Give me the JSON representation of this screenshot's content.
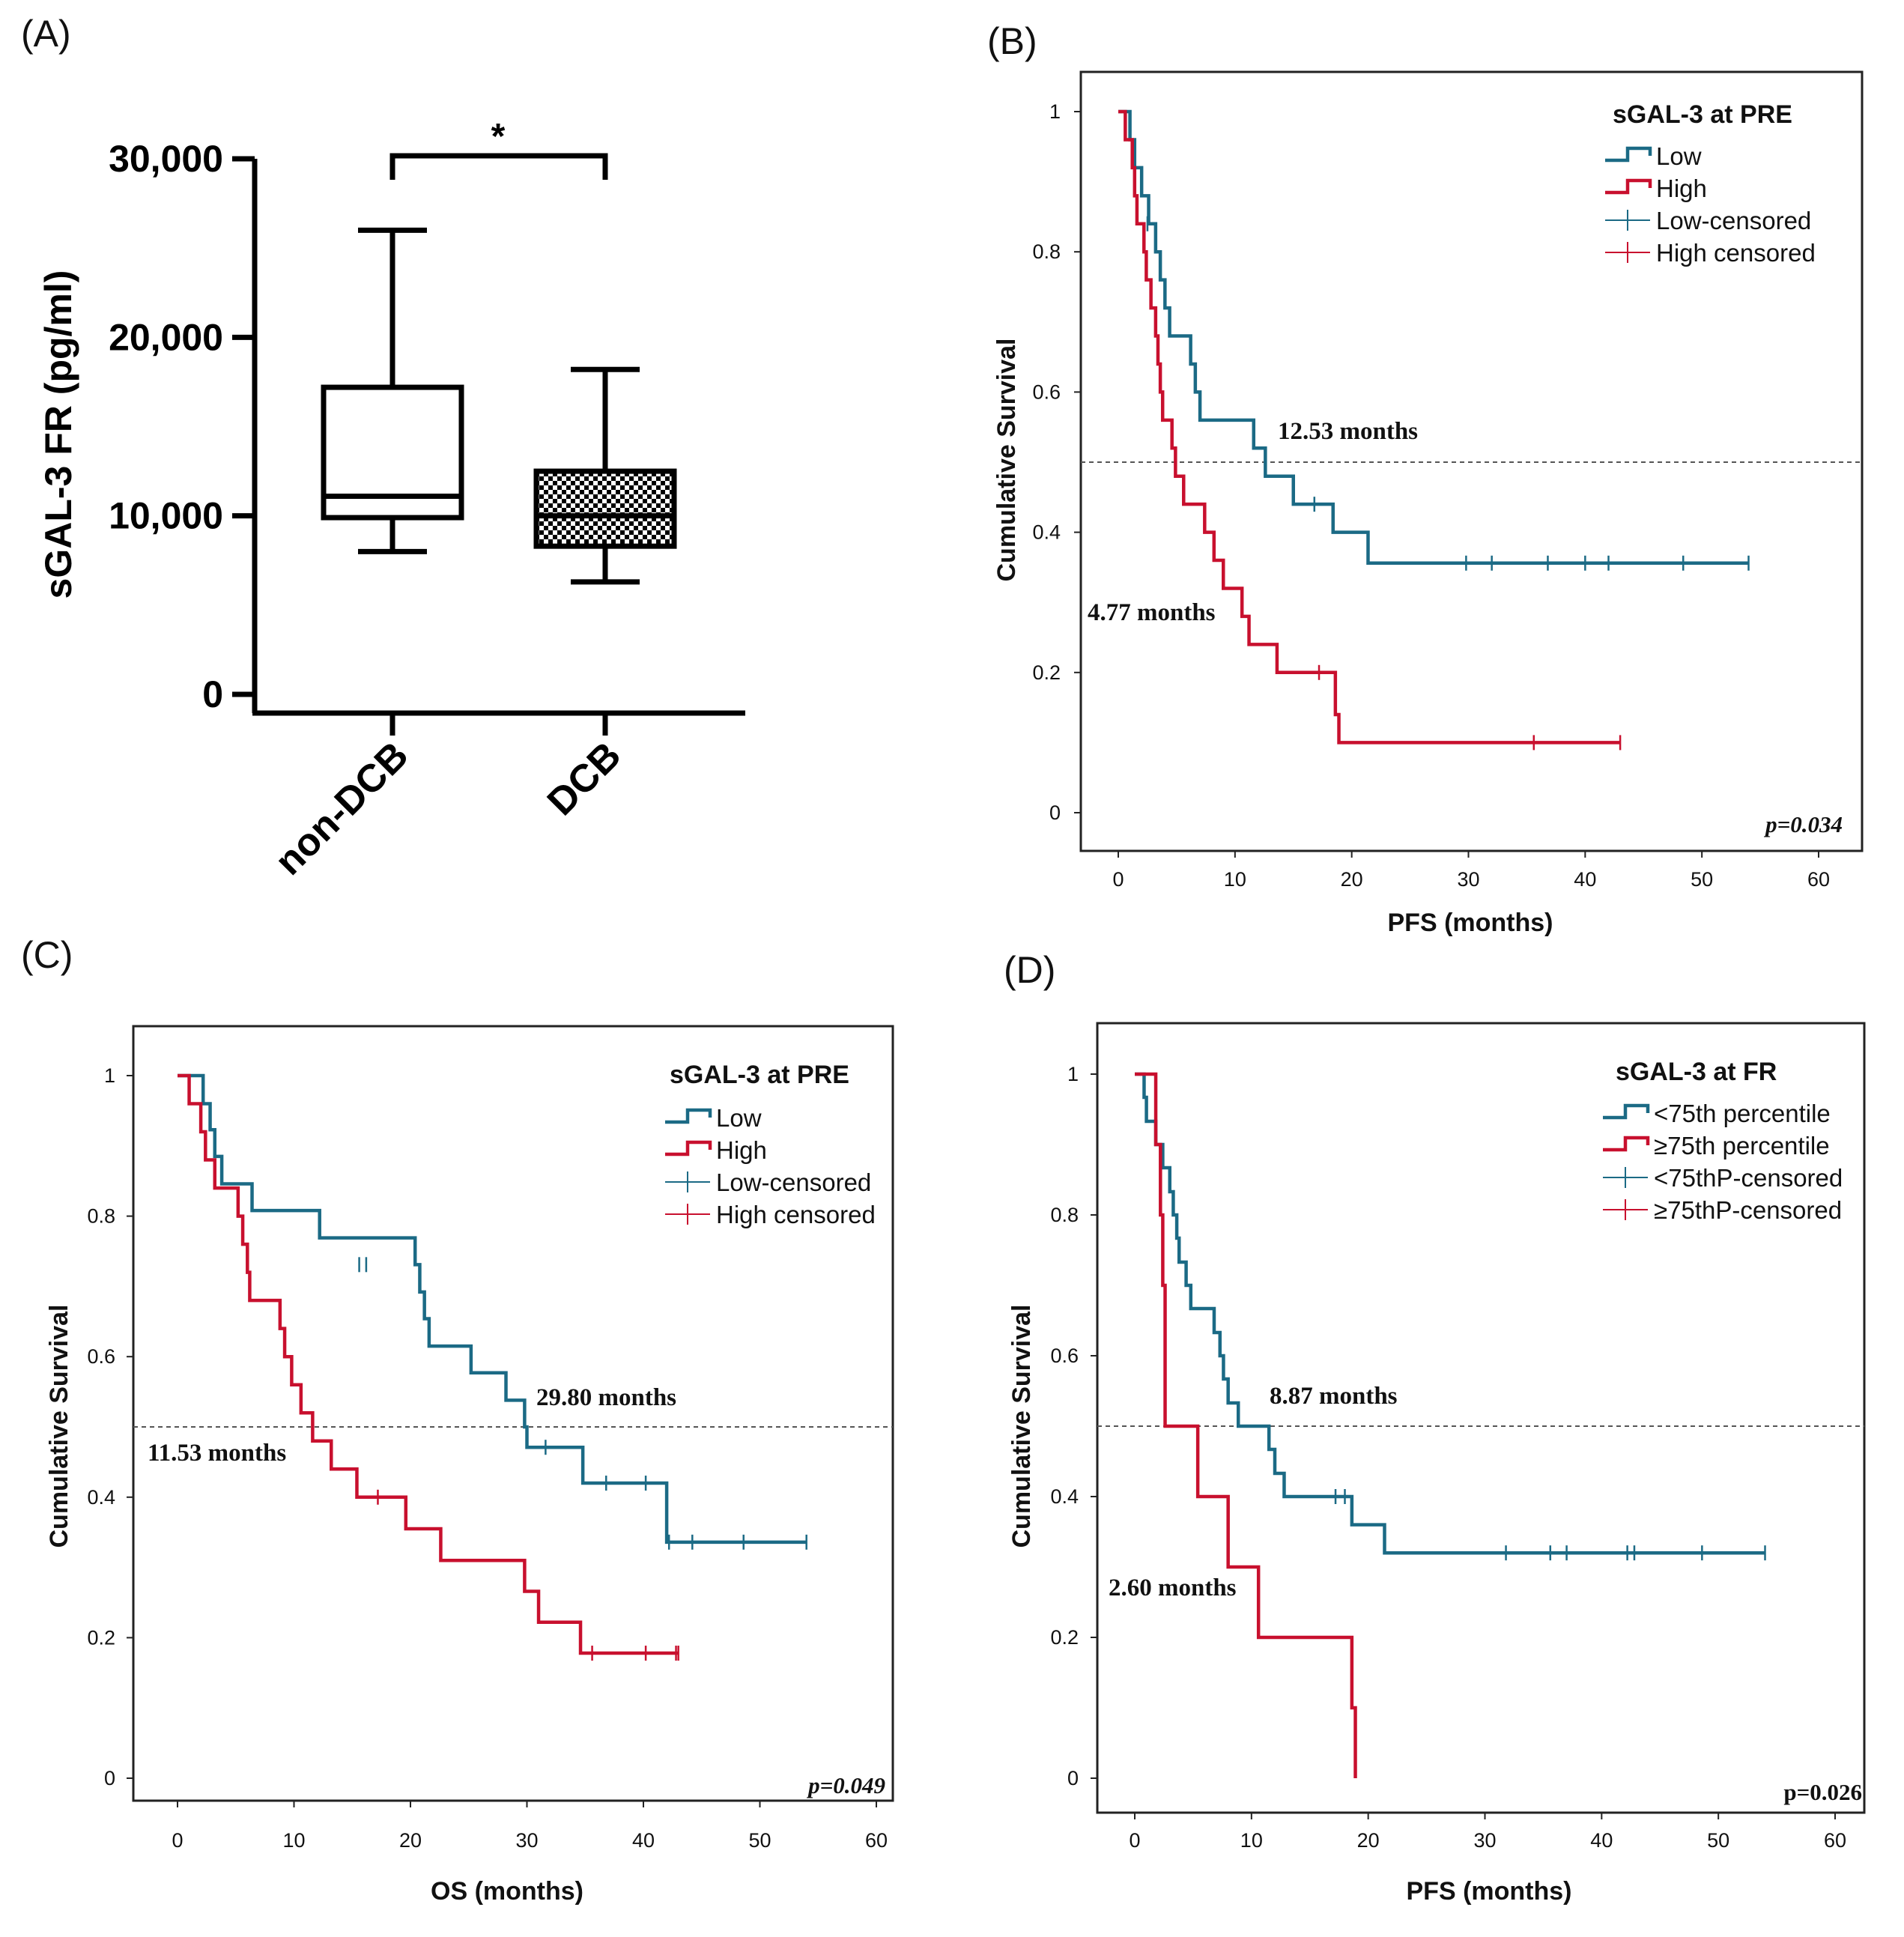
{
  "colors": {
    "low": "#1b6a85",
    "high": "#c8102e",
    "axis": "#000000",
    "ref": "#555555"
  },
  "chart_data": [
    {
      "panel": "(A)",
      "type": "box",
      "ylabel": "sGAL-3 FR (pg/ml)",
      "ylim": [
        0,
        30000
      ],
      "yticks": [
        "0",
        "10,000",
        "20,000",
        "30,000"
      ],
      "categories": [
        "non-DCB",
        "DCB"
      ],
      "boxes": [
        {
          "category": "non-DCB",
          "min": 8000,
          "q1": 9900,
          "median": 11100,
          "q3": 17200,
          "max": 26000,
          "fill": "none"
        },
        {
          "category": "DCB",
          "min": 6300,
          "q1": 8300,
          "median": 10000,
          "q3": 12500,
          "max": 18200,
          "fill": "checker"
        }
      ],
      "significance": "*"
    },
    {
      "panel": "(B)",
      "type": "line",
      "xlabel": "PFS (months)",
      "ylabel": "Cumulative Survival",
      "xlim": [
        0,
        60
      ],
      "ylim": [
        0,
        1
      ],
      "xticks": [
        "0",
        "10",
        "20",
        "30",
        "40",
        "50",
        "60"
      ],
      "yticks": [
        "0",
        "0.2",
        "0.4",
        "0.6",
        "0.8",
        "1"
      ],
      "legend_title": "sGAL-3 at PRE",
      "legend": [
        "Low",
        "High",
        "Low-censored",
        "High censored"
      ],
      "annotations": [
        "12.53 months",
        "4.77 months"
      ],
      "p_value": "p=0.034",
      "median_line": 0.5,
      "series": [
        {
          "name": "Low",
          "color_key": "low",
          "end": 54,
          "steps": [
            [
              0,
              1
            ],
            [
              1,
              0.96
            ],
            [
              1.4,
              0.92
            ],
            [
              2,
              0.88
            ],
            [
              2.6,
              0.84
            ],
            [
              3.2,
              0.8
            ],
            [
              3.6,
              0.76
            ],
            [
              4,
              0.72
            ],
            [
              4.4,
              0.68
            ],
            [
              6.2,
              0.64
            ],
            [
              6.6,
              0.6
            ],
            [
              7,
              0.56
            ],
            [
              11.6,
              0.52
            ],
            [
              12.6,
              0.48
            ],
            [
              15,
              0.44
            ],
            [
              18.4,
              0.4
            ],
            [
              21.4,
              0.356
            ]
          ],
          "censored": [
            [
              2.5,
              0.84
            ],
            [
              16.8,
              0.44
            ],
            [
              29.8,
              0.356
            ],
            [
              32,
              0.356
            ],
            [
              36.8,
              0.356
            ],
            [
              40,
              0.356
            ],
            [
              42,
              0.356
            ],
            [
              48.4,
              0.356
            ],
            [
              54,
              0.356
            ]
          ]
        },
        {
          "name": "High",
          "color_key": "high",
          "end": 43,
          "steps": [
            [
              0,
              1
            ],
            [
              0.6,
              0.96
            ],
            [
              1.2,
              0.92
            ],
            [
              1.4,
              0.88
            ],
            [
              1.6,
              0.84
            ],
            [
              2.2,
              0.8
            ],
            [
              2.4,
              0.76
            ],
            [
              2.8,
              0.72
            ],
            [
              3.2,
              0.68
            ],
            [
              3.4,
              0.64
            ],
            [
              3.6,
              0.6
            ],
            [
              3.8,
              0.56
            ],
            [
              4.6,
              0.52
            ],
            [
              4.9,
              0.48
            ],
            [
              5.6,
              0.44
            ],
            [
              7.4,
              0.4
            ],
            [
              8.2,
              0.36
            ],
            [
              9,
              0.32
            ],
            [
              10.6,
              0.28
            ],
            [
              11.2,
              0.24
            ],
            [
              13.6,
              0.2
            ],
            [
              18.6,
              0.14
            ],
            [
              18.9,
              0.1
            ]
          ],
          "censored": [
            [
              17.2,
              0.2
            ],
            [
              35.6,
              0.1
            ],
            [
              43,
              0.1
            ]
          ]
        }
      ]
    },
    {
      "panel": "(C)",
      "type": "line",
      "xlabel": "OS (months)",
      "ylabel": "Cumulative Survival",
      "xlim": [
        0,
        60
      ],
      "ylim": [
        0,
        1
      ],
      "xticks": [
        "0",
        "10",
        "20",
        "30",
        "40",
        "50",
        "60"
      ],
      "yticks": [
        "0",
        "0.2",
        "0.4",
        "0.6",
        "0.8",
        "1"
      ],
      "legend_title": "sGAL-3 at PRE",
      "legend": [
        "Low",
        "High",
        "Low-censored",
        "High censored"
      ],
      "annotations": [
        "29.80 months",
        "11.53 months"
      ],
      "p_value": "p=0.049",
      "median_line": 0.5,
      "series": [
        {
          "name": "Low",
          "color_key": "low",
          "end": 54,
          "steps": [
            [
              0,
              1
            ],
            [
              2.2,
              0.96
            ],
            [
              2.8,
              0.923
            ],
            [
              3.2,
              0.885
            ],
            [
              3.8,
              0.846
            ],
            [
              6.4,
              0.808
            ],
            [
              12.2,
              0.769
            ],
            [
              20.4,
              0.731
            ],
            [
              20.8,
              0.692
            ],
            [
              21.2,
              0.654
            ],
            [
              21.6,
              0.615
            ],
            [
              25.2,
              0.577
            ],
            [
              28.2,
              0.538
            ],
            [
              29.8,
              0.5
            ],
            [
              30,
              0.471
            ],
            [
              34.8,
              0.42
            ],
            [
              42,
              0.336
            ]
          ],
          "censored": [
            [
              15.6,
              0.731
            ],
            [
              16.2,
              0.731
            ],
            [
              31.6,
              0.471
            ],
            [
              36.8,
              0.42
            ],
            [
              40.2,
              0.42
            ],
            [
              42.2,
              0.336
            ],
            [
              44.2,
              0.336
            ],
            [
              48.6,
              0.336
            ],
            [
              54,
              0.336
            ]
          ]
        },
        {
          "name": "High",
          "color_key": "high",
          "end": 43,
          "steps": [
            [
              0,
              1
            ],
            [
              1,
              0.96
            ],
            [
              2,
              0.92
            ],
            [
              2.4,
              0.88
            ],
            [
              3.2,
              0.84
            ],
            [
              5.2,
              0.8
            ],
            [
              5.6,
              0.76
            ],
            [
              6,
              0.72
            ],
            [
              6.2,
              0.68
            ],
            [
              8.8,
              0.64
            ],
            [
              9.2,
              0.6
            ],
            [
              9.8,
              0.56
            ],
            [
              10.6,
              0.52
            ],
            [
              11.6,
              0.48
            ],
            [
              13.2,
              0.44
            ],
            [
              15.4,
              0.4
            ],
            [
              19.6,
              0.355
            ],
            [
              22.6,
              0.31
            ],
            [
              29.8,
              0.266
            ],
            [
              31,
              0.222
            ],
            [
              34.6,
              0.178
            ]
          ],
          "censored": [
            [
              17.2,
              0.4
            ],
            [
              35.6,
              0.178
            ],
            [
              40.2,
              0.178
            ],
            [
              42.8,
              0.178
            ],
            [
              43,
              0.178
            ]
          ]
        }
      ]
    },
    {
      "panel": "(D)",
      "type": "line",
      "xlabel": "PFS (months)",
      "ylabel": "Cumulative Survival",
      "xlim": [
        0,
        60
      ],
      "ylim": [
        0,
        1
      ],
      "xticks": [
        "0",
        "10",
        "20",
        "30",
        "40",
        "50",
        "60"
      ],
      "yticks": [
        "0",
        "0.2",
        "0.4",
        "0.6",
        "0.8",
        "1"
      ],
      "legend_title": "sGAL-3 at FR",
      "legend": [
        "<75th percentile",
        "≥75th percentile",
        "<75thP-censored",
        "≥75thP-censored"
      ],
      "annotations": [
        "8.87 months",
        "2.60 months"
      ],
      "p_value": "p=0.026",
      "median_line": 0.5,
      "series": [
        {
          "name": "<75th percentile",
          "color_key": "low",
          "end": 54,
          "steps": [
            [
              0,
              1
            ],
            [
              0.8,
              0.967
            ],
            [
              1,
              0.933
            ],
            [
              1.8,
              0.9
            ],
            [
              2.4,
              0.867
            ],
            [
              3,
              0.833
            ],
            [
              3.3,
              0.8
            ],
            [
              3.6,
              0.767
            ],
            [
              3.8,
              0.733
            ],
            [
              4.4,
              0.7
            ],
            [
              4.8,
              0.667
            ],
            [
              6.8,
              0.633
            ],
            [
              7.3,
              0.6
            ],
            [
              7.6,
              0.567
            ],
            [
              8,
              0.533
            ],
            [
              8.87,
              0.5
            ],
            [
              11.5,
              0.467
            ],
            [
              12,
              0.433
            ],
            [
              12.8,
              0.4
            ],
            [
              18.6,
              0.36
            ],
            [
              21.4,
              0.32
            ]
          ],
          "censored": [
            [
              17.2,
              0.4
            ],
            [
              18,
              0.4
            ],
            [
              31.8,
              0.32
            ],
            [
              35.6,
              0.32
            ],
            [
              37,
              0.32
            ],
            [
              42.2,
              0.32
            ],
            [
              42.8,
              0.32
            ],
            [
              48.6,
              0.32
            ],
            [
              54,
              0.32
            ]
          ]
        },
        {
          "name": "≥75th percentile",
          "color_key": "high",
          "end": 18.9,
          "steps": [
            [
              0,
              1
            ],
            [
              1.8,
              0.9
            ],
            [
              2.2,
              0.8
            ],
            [
              2.4,
              0.7
            ],
            [
              2.6,
              0.5
            ],
            [
              5.4,
              0.4
            ],
            [
              8,
              0.3
            ],
            [
              10.6,
              0.2
            ],
            [
              18.6,
              0.1
            ],
            [
              18.9,
              0
            ]
          ],
          "censored": []
        }
      ]
    }
  ]
}
